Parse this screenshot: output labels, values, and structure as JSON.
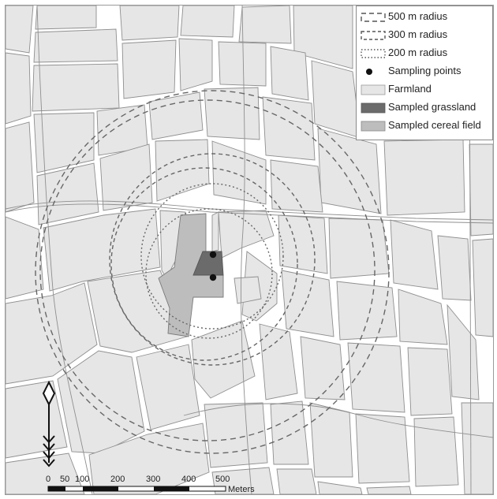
{
  "legend": {
    "items": [
      {
        "label": "500 m radius",
        "symbol": "dashed-large"
      },
      {
        "label": "300 m radius",
        "symbol": "dashed-medium"
      },
      {
        "label": "200 m radius",
        "symbol": "dotted"
      },
      {
        "label": "Sampling points",
        "symbol": "dot"
      },
      {
        "label": "Farmland",
        "symbol": "fill-light"
      },
      {
        "label": "Sampled grassland",
        "symbol": "fill-dark"
      },
      {
        "label": "Sampled cereal field",
        "symbol": "fill-medium"
      }
    ]
  },
  "scale_bar": {
    "ticks": [
      "0",
      "50",
      "100",
      "200",
      "300",
      "400",
      "500"
    ],
    "unit": "Meters"
  },
  "colors": {
    "farmland": "#e6e6e6",
    "sampled_grassland": "#6b6b6b",
    "sampled_cereal_field": "#bdbdbd",
    "field_outline": "#8f8f8f",
    "radius_circles": "#666666"
  },
  "icons": {
    "north_arrow": "north-arrow-icon"
  }
}
